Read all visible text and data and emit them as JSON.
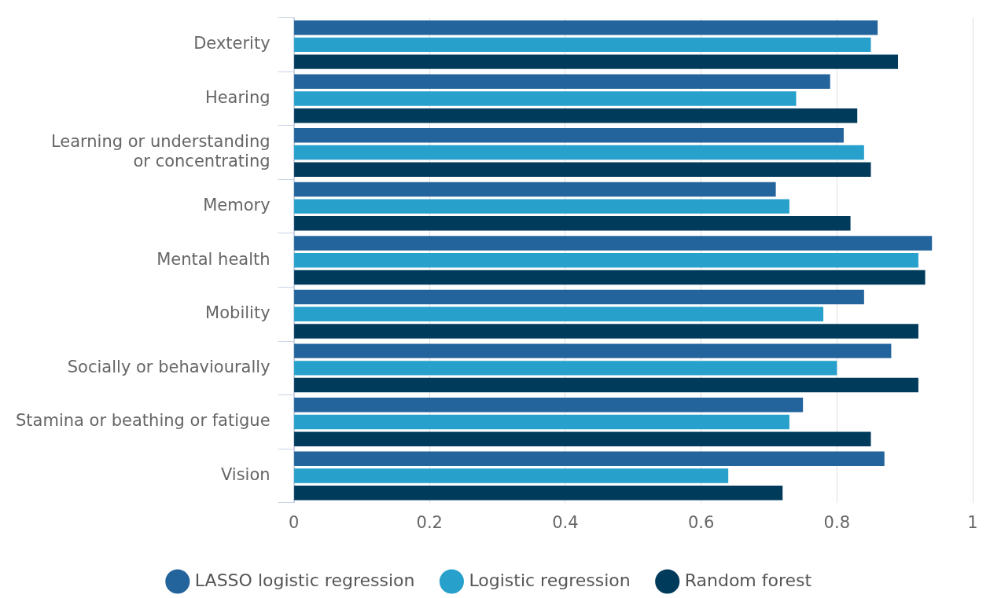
{
  "chart_data": {
    "type": "bar",
    "orientation": "horizontal",
    "categories": [
      "Dexterity",
      "Hearing",
      "Learning or understanding or concentrating",
      "Memory",
      "Mental health",
      "Mobility",
      "Socially or behaviourally",
      "Stamina or beathing or fatigue",
      "Vision"
    ],
    "series": [
      {
        "name": "LASSO logistic regression",
        "color": "#24649c",
        "values": [
          0.86,
          0.79,
          0.81,
          0.71,
          0.94,
          0.84,
          0.88,
          0.75,
          0.87
        ]
      },
      {
        "name": "Logistic regression",
        "color": "#27a0cc",
        "values": [
          0.85,
          0.74,
          0.84,
          0.73,
          0.92,
          0.78,
          0.8,
          0.73,
          0.64
        ]
      },
      {
        "name": "Random forest",
        "color": "#003b5c",
        "values": [
          0.89,
          0.83,
          0.85,
          0.82,
          0.93,
          0.92,
          0.92,
          0.85,
          0.72
        ]
      }
    ],
    "xlim": [
      0,
      1
    ],
    "xticks": [
      0,
      0.2,
      0.4,
      0.6,
      0.8,
      1
    ],
    "grid": "x",
    "legend": "bottom"
  }
}
